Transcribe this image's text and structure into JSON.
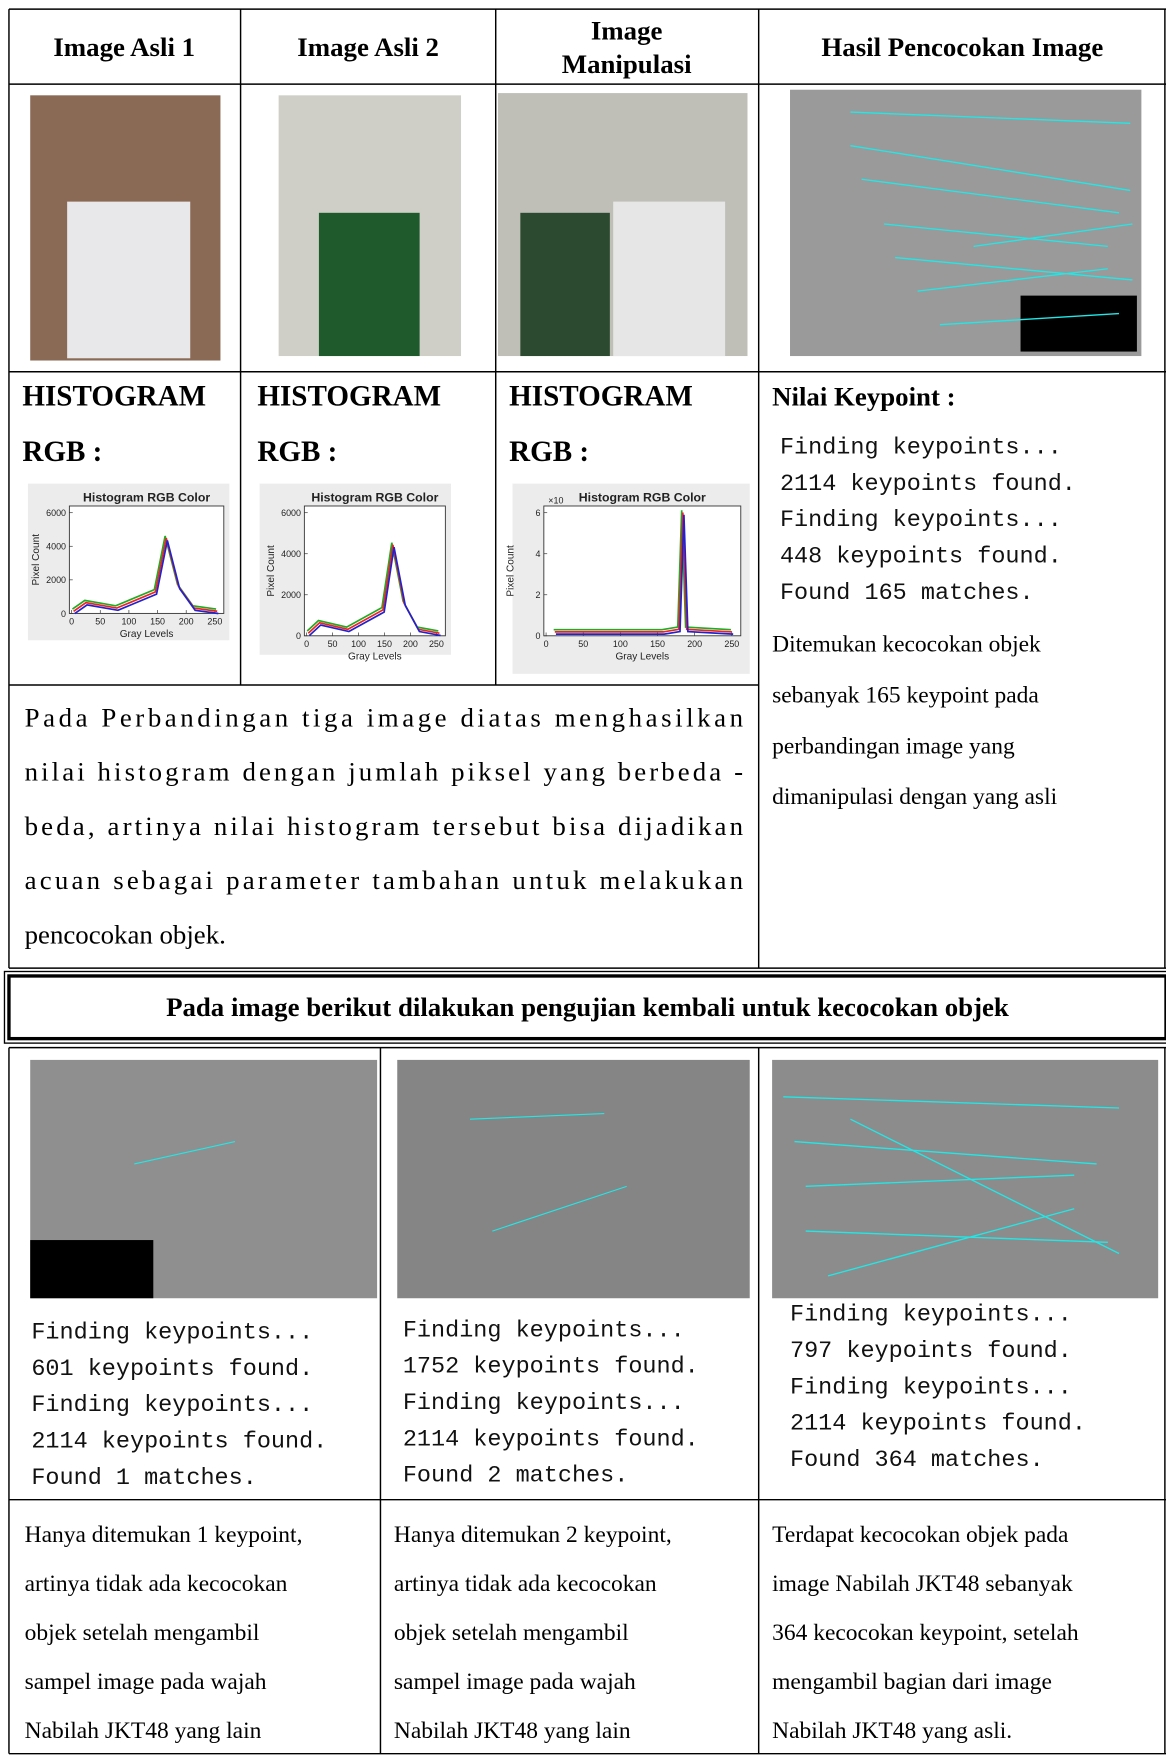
{
  "headers": [
    [
      "Image Asli 1"
    ],
    [
      "Image Asli 2"
    ],
    [
      "Image",
      "Manipulasi"
    ],
    [
      "Hasil Pencocokan Image"
    ]
  ],
  "histograms": [
    {
      "heading": [
        "HISTOGRAM",
        "RGB :"
      ],
      "title": "Histogram RGB Color",
      "ylabel": "Pixel Count",
      "xlabel": "Gray Levels",
      "yticks": [
        0,
        2000,
        4000,
        6000
      ],
      "xticks": [
        0,
        50,
        100,
        150,
        200,
        250
      ]
    },
    {
      "heading": [
        "HISTOGRAM",
        "RGB :"
      ],
      "title": "Histogram RGB Color",
      "ylabel": "Pixel Count",
      "xlabel": "Gray Levels",
      "yticks": [
        0,
        2000,
        4000,
        6000
      ],
      "xticks": [
        0,
        50,
        100,
        150,
        200,
        250
      ]
    },
    {
      "heading": [
        "HISTOGRAM",
        "RGB :"
      ],
      "title": "Histogram RGB Color",
      "ylabel": "Pixel Count",
      "xlabel": "Gray Levels",
      "multiplier": "×10",
      "yticks": [
        0,
        2,
        4,
        6
      ],
      "xticks": [
        0,
        50,
        100,
        150,
        200,
        250
      ]
    }
  ],
  "keypoint": {
    "label": "Nilai Keypoint :",
    "log": [
      "Finding keypoints...",
      "2114 keypoints found.",
      "Finding keypoints...",
      "448 keypoints found.",
      "Found 165 matches."
    ],
    "description": [
      "Ditemukan kecocokan objek",
      "sebanyak 165 keypoint pada",
      "perbandingan image yang",
      "dimanipulasi dengan yang asli"
    ]
  },
  "paragraph": [
    "Pada Perbandingan tiga image diatas menghasilkan",
    "nilai histogram dengan jumlah piksel yang berbeda -",
    "beda, artinya nilai histogram tersebut bisa dijadikan",
    "acuan sebagai parameter tambahan untuk melakukan",
    "pencocokan objek."
  ],
  "banner": "Pada image berikut dilakukan pengujian kembali untuk kecocokan objek",
  "tests": [
    {
      "log": [
        "Finding keypoints...",
        "601 keypoints found.",
        "Finding keypoints...",
        "2114 keypoints found.",
        "Found 1 matches."
      ],
      "description": [
        "Hanya ditemukan 1 keypoint,",
        "artinya tidak ada kecocokan",
        "objek setelah mengambil",
        "sampel image pada wajah",
        "Nabilah JKT48 yang lain"
      ]
    },
    {
      "log": [
        "Finding keypoints...",
        "1752 keypoints found.",
        "Finding keypoints...",
        "2114 keypoints found.",
        "Found 2 matches."
      ],
      "description": [
        "Hanya ditemukan 2 keypoint,",
        "artinya tidak ada kecocokan",
        "objek setelah mengambil",
        "sampel image pada wajah",
        "Nabilah JKT48 yang lain"
      ]
    },
    {
      "log": [
        "Finding keypoints...",
        "797 keypoints found.",
        "Finding keypoints...",
        "2114 keypoints found.",
        "Found 364 matches."
      ],
      "description": [
        "Terdapat kecocokan objek pada",
        "image Nabilah JKT48 sebanyak",
        "364 kecocokan keypoint, setelah",
        "mengambil bagian dari image",
        "Nabilah JKT48 yang asli."
      ]
    }
  ]
}
